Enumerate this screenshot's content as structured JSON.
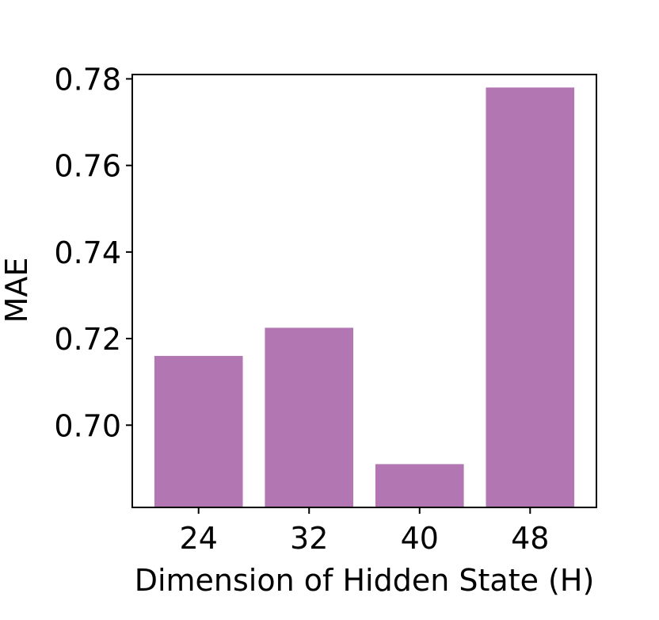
{
  "chart_data": {
    "type": "bar",
    "categories": [
      "24",
      "32",
      "40",
      "48"
    ],
    "values": [
      0.716,
      0.7225,
      0.691,
      0.778
    ],
    "title": "",
    "xlabel": "Dimension of Hidden State (H)",
    "ylabel": "MAE",
    "ylim": [
      0.681,
      0.781
    ],
    "yticks": [
      0.7,
      0.72,
      0.74,
      0.76,
      0.78
    ],
    "ytick_labels": [
      "0.70",
      "0.72",
      "0.74",
      "0.76",
      "0.78"
    ],
    "bar_color": "#b276b2",
    "grid": false,
    "legend": "none"
  }
}
